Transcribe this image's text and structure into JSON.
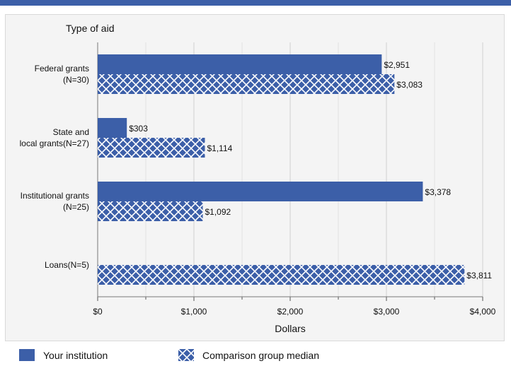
{
  "chart_data": {
    "type": "bar",
    "orientation": "horizontal",
    "title": "Type of aid",
    "xlabel": "Dollars",
    "categories": [
      [
        "Federal grants",
        "(N=30)"
      ],
      [
        "State and",
        "local grants(N=27)"
      ],
      [
        "Institutional grants",
        "(N=25)"
      ],
      [
        "Loans(N=5)"
      ]
    ],
    "series": [
      {
        "name": "Your institution",
        "values": [
          2951,
          303,
          3378,
          null
        ],
        "labels": [
          "$2,951",
          "$303",
          "$3,378",
          ""
        ]
      },
      {
        "name": "Comparison group median",
        "values": [
          3083,
          1114,
          1092,
          3811
        ],
        "labels": [
          "$3,083",
          "$1,114",
          "$1,092",
          "$3,811"
        ]
      }
    ],
    "xlim": [
      0,
      4000
    ],
    "xticks": [
      0,
      1000,
      2000,
      3000,
      4000
    ],
    "xtick_labels": [
      "$0",
      "$1,000",
      "$2,000",
      "$3,000",
      "$4,000"
    ],
    "grid": true,
    "legend_position": "bottom",
    "colors": {
      "bar": "#3c5fa8",
      "hatch_lines": "#ffffff"
    }
  }
}
